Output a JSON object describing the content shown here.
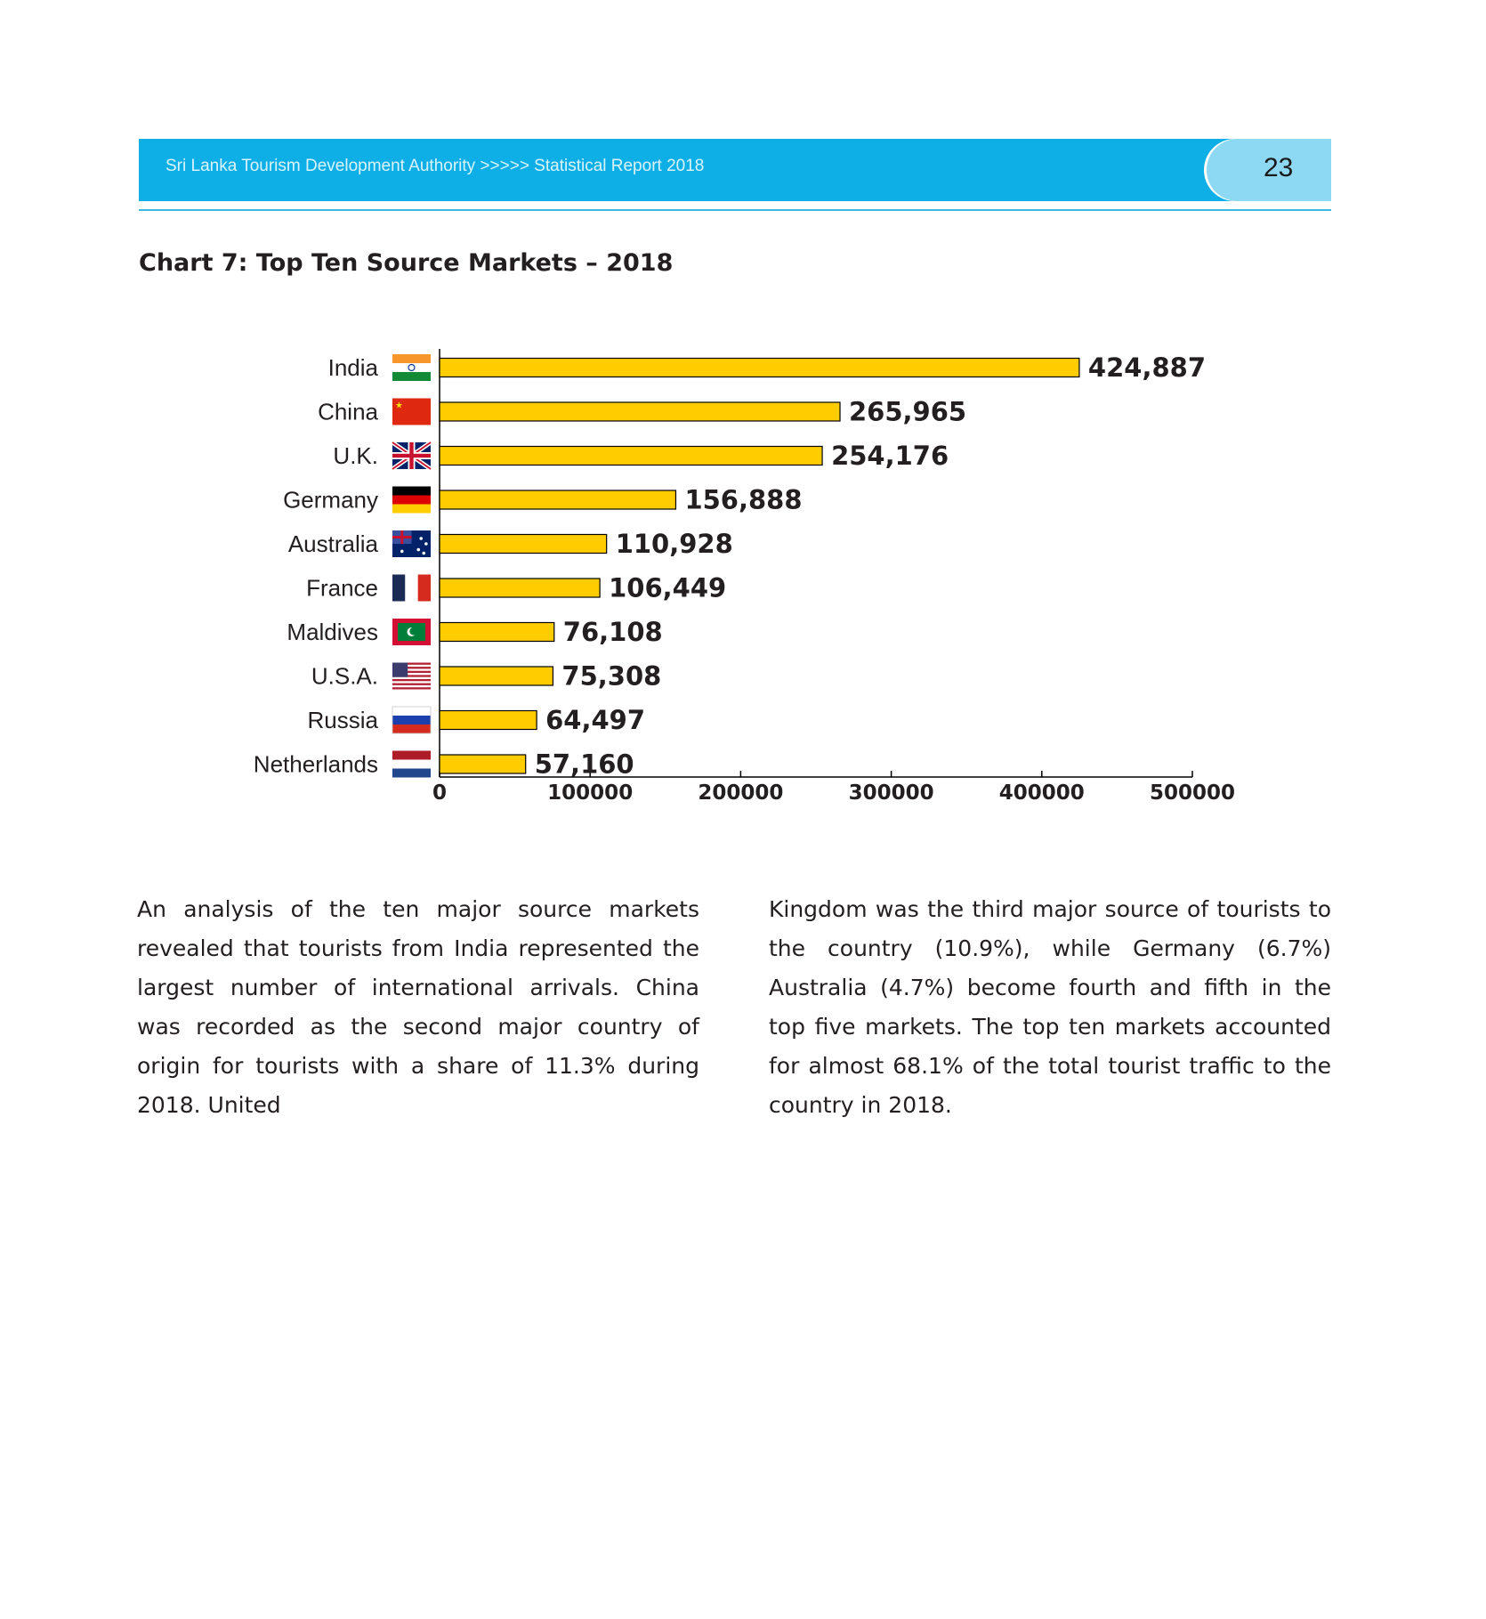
{
  "header": {
    "publication": "Sri Lanka Tourism Development Authority >>>>> Statistical Report 2018",
    "page_number": "23"
  },
  "chart_data": {
    "type": "bar",
    "orientation": "horizontal",
    "title": "Chart 7: Top Ten Source Markets – 2018",
    "categories": [
      "India",
      "China",
      "U.K.",
      "Germany",
      "Australia",
      "France",
      "Maldives",
      "U.S.A.",
      "Russia",
      "Netherlands"
    ],
    "values": [
      424887,
      265965,
      254176,
      156888,
      110928,
      106449,
      76108,
      75308,
      64497,
      57160
    ],
    "data_labels": [
      "424,887",
      "265,965",
      "254,176",
      "156,888",
      "110,928",
      "106,449",
      "76,108",
      "75,308",
      "64,497",
      "57,160"
    ],
    "flag_icons": [
      "india-flag-icon",
      "china-flag-icon",
      "uk-flag-icon",
      "germany-flag-icon",
      "australia-flag-icon",
      "france-flag-icon",
      "maldives-flag-icon",
      "usa-flag-icon",
      "russia-flag-icon",
      "netherlands-flag-icon"
    ],
    "xlim": [
      0,
      500000
    ],
    "x_ticks": [
      "0",
      "100000",
      "200000",
      "300000",
      "400000",
      "500000"
    ],
    "xlabel": "",
    "ylabel": "",
    "grid": false,
    "bar_color": "#ffcc00"
  },
  "body_text": {
    "left_column": "An analysis of the ten major source markets revealed that tourists from India represented the largest number of international arrivals. China was recorded as the second major country of origin for tourists with a share of 11.3% during 2018. United",
    "right_column": "Kingdom was the third major source of tourists to the country (10.9%), while Germany (6.7%) Australia (4.7%) become fourth and fifth in the top five markets. The top ten markets accounted for almost 68.1% of the total tourist traffic to the country in 2018."
  }
}
